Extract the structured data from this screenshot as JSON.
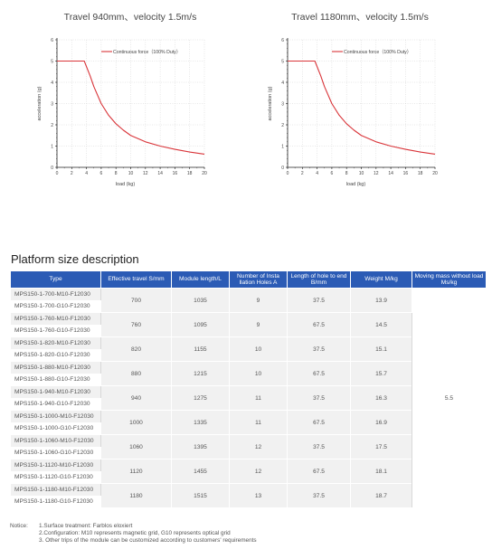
{
  "chart_data": [
    {
      "type": "line",
      "title": "Travel 940mm、velocity 1.5m/s",
      "xlabel": "load (kg)",
      "ylabel": "acceleration (g)",
      "xlim": [
        0,
        20
      ],
      "ylim": [
        0,
        6
      ],
      "xticks": [
        0,
        2,
        4,
        6,
        8,
        10,
        12,
        14,
        16,
        18,
        20
      ],
      "yticks": [
        0,
        1,
        2,
        3,
        4,
        5,
        6
      ],
      "legend_position": "top-center",
      "series": [
        {
          "name": "Continuous force（100% Duty）",
          "color": "#d9353a",
          "x": [
            0,
            3.7,
            4.5,
            5,
            6,
            7,
            8,
            9,
            10,
            12,
            14,
            16,
            18,
            20
          ],
          "y": [
            5,
            5,
            4.3,
            3.8,
            3.0,
            2.45,
            2.05,
            1.75,
            1.5,
            1.2,
            1.0,
            0.85,
            0.72,
            0.62
          ]
        }
      ]
    },
    {
      "type": "line",
      "title": "Travel 1180mm、velocity 1.5m/s",
      "xlabel": "load (kg)",
      "ylabel": "acceleration (g)",
      "xlim": [
        0,
        20
      ],
      "ylim": [
        0,
        6
      ],
      "xticks": [
        0,
        2,
        4,
        6,
        8,
        10,
        12,
        14,
        16,
        18,
        20
      ],
      "yticks": [
        0,
        1,
        2,
        3,
        4,
        5,
        6
      ],
      "legend_position": "top-center",
      "series": [
        {
          "name": "Continuous force（100% Duty）",
          "color": "#d9353a",
          "x": [
            0,
            3.7,
            4.5,
            5,
            6,
            7,
            8,
            9,
            10,
            12,
            14,
            16,
            18,
            20
          ],
          "y": [
            5,
            5,
            4.3,
            3.8,
            3.0,
            2.45,
            2.05,
            1.75,
            1.5,
            1.2,
            1.0,
            0.85,
            0.72,
            0.62
          ]
        }
      ]
    }
  ],
  "section_title": "Platform size description",
  "table": {
    "headers": {
      "type": "Type",
      "travel": "Effective travel S/mm",
      "length": "Module length/L",
      "holes": "Number of Insta llation Holes A",
      "hole_end": "Length of hole to end B/mm",
      "weight": "Weight M/kg",
      "moving_mass": "Moving mass without load Ms/kg"
    },
    "moving_mass_value": "5.5",
    "groups": [
      {
        "types": [
          "MPS150-1-700-M10-F12030",
          "MPS150-1-700-G10-F12030"
        ],
        "travel": "700",
        "length": "1035",
        "holes": "9",
        "hole_end": "37.5",
        "weight": "13.9"
      },
      {
        "types": [
          "MPS150-1-760-M10-F12030",
          "MPS150-1-760-G10-F12030"
        ],
        "travel": "760",
        "length": "1095",
        "holes": "9",
        "hole_end": "67.5",
        "weight": "14.5"
      },
      {
        "types": [
          "MPS150-1-820-M10-F12030",
          "MPS150-1-820-G10-F12030"
        ],
        "travel": "820",
        "length": "1155",
        "holes": "10",
        "hole_end": "37.5",
        "weight": "15.1"
      },
      {
        "types": [
          "MPS150-1-880-M10-F12030",
          "MPS150-1-880-G10-F12030"
        ],
        "travel": "880",
        "length": "1215",
        "holes": "10",
        "hole_end": "67.5",
        "weight": "15.7"
      },
      {
        "types": [
          "MPS150-1-940-M10-F12030",
          "MPS150-1-940-G10-F12030"
        ],
        "travel": "940",
        "length": "1275",
        "holes": "11",
        "hole_end": "37.5",
        "weight": "16.3"
      },
      {
        "types": [
          "MPS150-1-1000-M10-F12030",
          "MPS150-1-1000-G10-F12030"
        ],
        "travel": "1000",
        "length": "1335",
        "holes": "11",
        "hole_end": "67.5",
        "weight": "16.9"
      },
      {
        "types": [
          "MPS150-1-1060-M10-F12030",
          "MPS150-1-1060-G10-F12030"
        ],
        "travel": "1060",
        "length": "1395",
        "holes": "12",
        "hole_end": "37.5",
        "weight": "17.5"
      },
      {
        "types": [
          "MPS150-1-1120-M10-F12030",
          "MPS150-1-1120-G10-F12030"
        ],
        "travel": "1120",
        "length": "1455",
        "holes": "12",
        "hole_end": "67.5",
        "weight": "18.1"
      },
      {
        "types": [
          "MPS150-1-1180-M10-F12030",
          "MPS150-1-1180-G10-F12030"
        ],
        "travel": "1180",
        "length": "1515",
        "holes": "13",
        "hole_end": "37.5",
        "weight": "18.7"
      }
    ]
  },
  "notices": {
    "label": "Notice:",
    "items": [
      "1.Surface treatment: Farblos eloxiert",
      "2.Configuration: M10 represents magnetic grid, G10 represents optical grid",
      "3. Other trips of the module can be customized according to customers' requirements"
    ]
  },
  "colors": {
    "header_blue": "#2b5bb5",
    "curve_red": "#d9353a",
    "row_shade": "#f1f1f1"
  }
}
